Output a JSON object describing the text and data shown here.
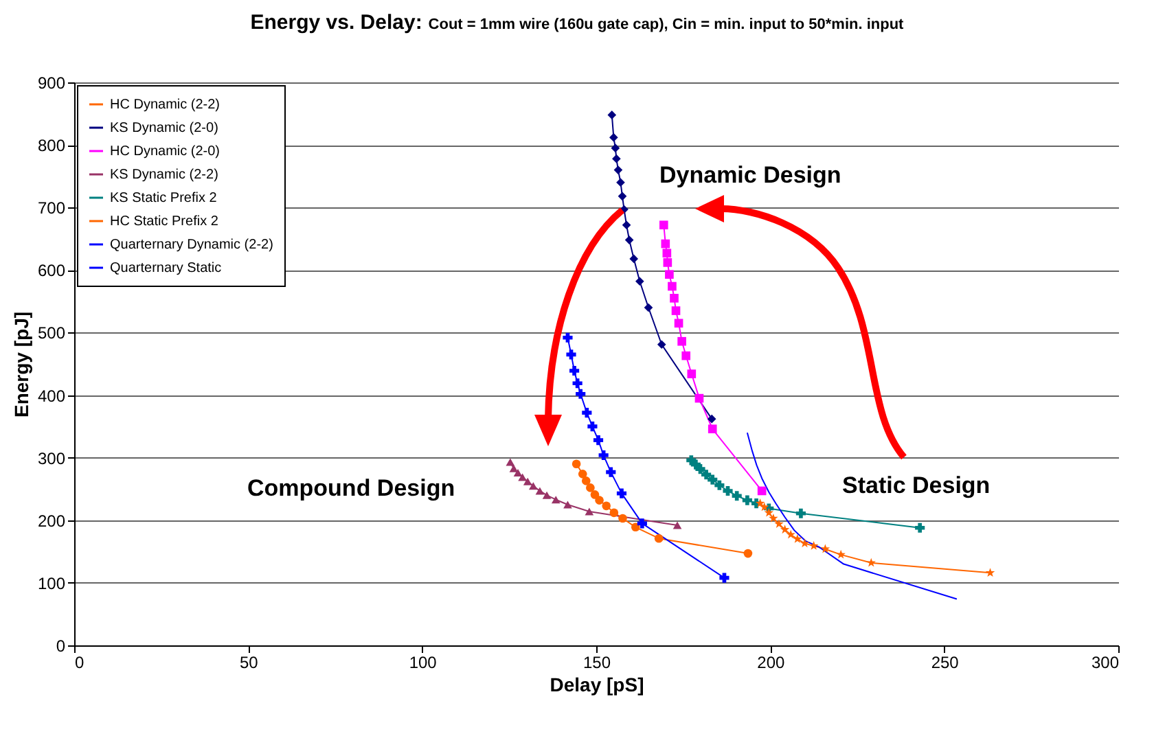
{
  "chart_data": {
    "type": "line",
    "title": "Energy vs. Delay:",
    "subtitle": "Cout = 1mm wire (160u gate cap), Cin = min. input to 50*min. input",
    "xlabel": "Delay [pS]",
    "ylabel": "Energy [pJ]",
    "xlim": [
      0,
      300
    ],
    "xticks": [
      0,
      50,
      100,
      150,
      200,
      250,
      300
    ],
    "ylim": [
      0,
      900
    ],
    "yticks": [
      0,
      100,
      200,
      300,
      400,
      500,
      600,
      700,
      800,
      900
    ],
    "grid": "y",
    "legend": "top left",
    "annotations": [
      "Dynamic Design",
      "Compound Design",
      "Static Design"
    ],
    "series": [
      {
        "name": "HC Dynamic (2-2)",
        "color": "#ff6600",
        "marker": "circle",
        "x": [
          144.3,
          146.1,
          147.1,
          148.3,
          149.6,
          150.9,
          152.9,
          155.1,
          157.6,
          161.3,
          168,
          193.6
        ],
        "values": [
          290,
          274,
          263,
          252,
          241,
          232,
          223,
          212,
          203,
          189,
          171,
          147
        ]
      },
      {
        "name": "KS Dynamic (2-0)",
        "color": "#000080",
        "marker": "diamond",
        "x": [
          154.5,
          155,
          155.5,
          155.8,
          156.3,
          157,
          157.5,
          158,
          158.7,
          159.5,
          160.8,
          162.5,
          165,
          168.8,
          183.2
        ],
        "values": [
          848,
          812,
          795,
          778,
          760,
          740,
          718,
          697,
          672,
          648,
          618,
          582,
          540,
          481,
          362
        ]
      },
      {
        "name": "HC Dynamic (2-0)",
        "color": "#ff00ff",
        "marker": "square",
        "x": [
          169.4,
          169.9,
          170.3,
          170.5,
          171,
          171.8,
          172.4,
          172.9,
          173.7,
          174.6,
          175.8,
          177.4,
          179.6,
          183.4,
          197.6
        ],
        "values": [
          672,
          642,
          627,
          612,
          593,
          574,
          555,
          535,
          515,
          486,
          463,
          434,
          395,
          346,
          247
        ]
      },
      {
        "name": "KS Dynamic (2-2)",
        "color": "#993366",
        "marker": "triangle",
        "x": [
          125.3,
          126.3,
          127.5,
          128.8,
          130.3,
          131.9,
          133.8,
          135.8,
          138.4,
          141.8,
          148,
          173.3
        ],
        "values": [
          293,
          283,
          276,
          269,
          262,
          255,
          247,
          240,
          233,
          225,
          214,
          192
        ]
      },
      {
        "name": "KS Static Prefix 2",
        "color": "#008080",
        "marker": "cross",
        "x": [
          177.3,
          178.6,
          179.9,
          181.6,
          183.4,
          185.4,
          187.8,
          190.4,
          193.4,
          196,
          199.6,
          208.8,
          243
        ],
        "values": [
          296,
          289,
          282,
          273,
          265,
          256,
          247,
          239,
          232,
          227,
          219,
          211,
          188
        ]
      },
      {
        "name": "HC Static Prefix 2",
        "color": "#ff6600",
        "marker": "star",
        "x": [
          197.1,
          198.3,
          199.6,
          200.9,
          202.5,
          204.2,
          205.9,
          207.8,
          209.9,
          212.5,
          215.8,
          220.3,
          229,
          263.2
        ],
        "values": [
          227,
          221,
          212,
          203,
          194,
          185,
          177,
          170,
          163,
          159,
          154,
          145,
          132,
          116
        ]
      },
      {
        "name": "Quarternary Dynamic (2-2)",
        "color": "#0000ff",
        "marker": "cross",
        "x": [
          141.8,
          142.8,
          143.7,
          144.6,
          145.5,
          147.3,
          148.9,
          150.6,
          152.1,
          154.2,
          157.3,
          163.2,
          186.8
        ],
        "values": [
          492,
          465,
          439,
          419,
          402,
          372,
          350,
          328,
          304,
          277,
          243,
          195,
          108
        ]
      },
      {
        "name": "Quarternary Static",
        "color": "#0000ff",
        "marker": "none",
        "x": [
          193.4,
          194.8,
          196.1,
          197.6,
          199.6,
          201.6,
          204.2,
          206.9,
          210.1,
          214.1,
          221.1,
          253.6
        ],
        "values": [
          340,
          311,
          288,
          267,
          245,
          227,
          205,
          184,
          167,
          157,
          130,
          74
        ]
      }
    ]
  }
}
